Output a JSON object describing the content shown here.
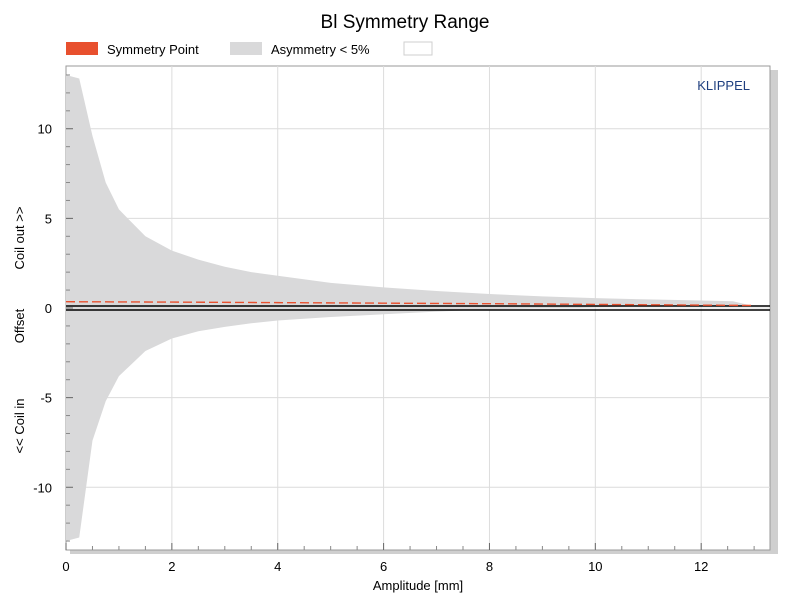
{
  "chart_data": {
    "type": "area",
    "title": "Bl Symmetry Range",
    "brand": "KLIPPEL",
    "xlabel": "Amplitude [mm]",
    "ylabel_parts": [
      "<< Coil in",
      "Offset",
      "Coil out >>"
    ],
    "xlim": [
      0,
      13.3
    ],
    "ylim": [
      -13.5,
      13.5
    ],
    "xticks": [
      0,
      2,
      4,
      6,
      8,
      10,
      12
    ],
    "yticks": [
      -10,
      -5,
      0,
      5,
      10
    ],
    "grid": true,
    "legend_position": "top",
    "legend": [
      {
        "label": "Symmetry Point",
        "color": "#e8502e"
      },
      {
        "label": "Asymmetry < 5%",
        "color": "#d9d9da"
      },
      {
        "label": "",
        "color": "#ffffff"
      }
    ],
    "series": [
      {
        "name": "Asymmetry < 5%",
        "kind": "band",
        "x": [
          0.0,
          0.25,
          0.5,
          0.75,
          1.0,
          1.5,
          2.0,
          2.5,
          3.0,
          3.5,
          4.0,
          5.0,
          6.0,
          7.0,
          8.0,
          9.0,
          10.0,
          11.0,
          12.0,
          12.6,
          13.0
        ],
        "upper": [
          13.0,
          12.8,
          9.6,
          7.0,
          5.5,
          4.0,
          3.2,
          2.7,
          2.3,
          2.0,
          1.8,
          1.4,
          1.15,
          0.95,
          0.78,
          0.65,
          0.55,
          0.48,
          0.42,
          0.38,
          0.1
        ],
        "lower": [
          -13.0,
          -12.8,
          -7.4,
          -5.2,
          -3.8,
          -2.4,
          -1.7,
          -1.3,
          -1.05,
          -0.85,
          -0.7,
          -0.5,
          -0.35,
          -0.2,
          -0.08,
          -0.02,
          0.05,
          0.1,
          0.12,
          0.14,
          0.1
        ]
      },
      {
        "name": "Symmetry Point",
        "kind": "dashed-line",
        "x": [
          0.0,
          2.0,
          4.0,
          6.0,
          8.0,
          10.0,
          12.0,
          13.0
        ],
        "values": [
          0.35,
          0.33,
          0.3,
          0.27,
          0.24,
          0.2,
          0.16,
          0.14
        ]
      }
    ]
  }
}
